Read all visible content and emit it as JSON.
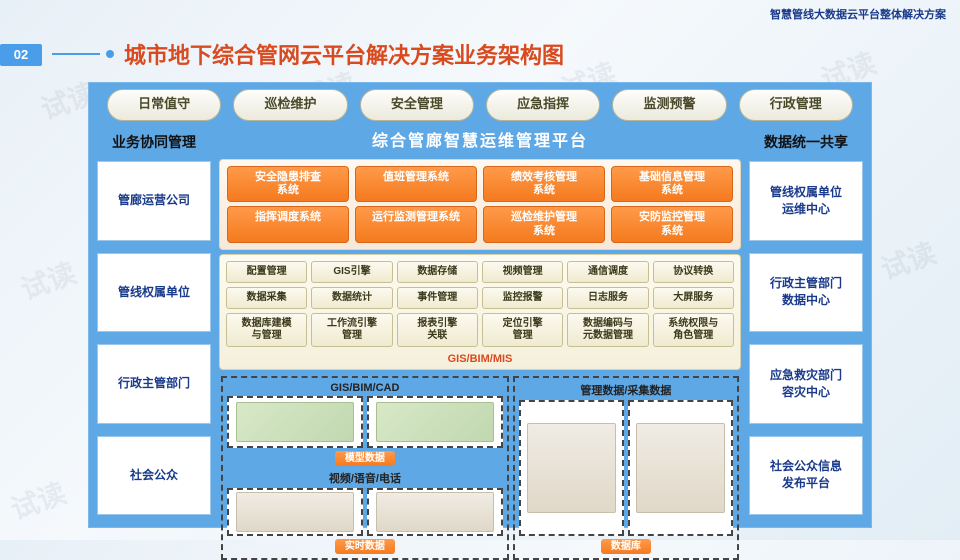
{
  "header_small": "智慧管线大数据云平台整体解决方案",
  "badge": "02",
  "title": "城市地下综合管网云平台解决方案业务架构图",
  "watermark": "试读",
  "colors": {
    "blue_bg": "#5fa8e6",
    "orange_btn": "#f57a1e",
    "title_red": "#d94a1e",
    "navy_text": "#1a3a8a",
    "tab_bg": "#eceadd",
    "cream_bg": "#f5f0dc"
  },
  "top_tabs": [
    "日常值守",
    "巡检维护",
    "安全管理",
    "应急指挥",
    "监测预警",
    "行政管理"
  ],
  "left": {
    "header": "业务协同管理",
    "boxes": [
      "管廊运营公司",
      "管线权属单位",
      "行政主管部门",
      "社会公众"
    ]
  },
  "right": {
    "header": "数据统一共享",
    "boxes": [
      "管线权属单位\n运维中心",
      "行政主管部门\n数据中心",
      "应急救灾部门\n容灾中心",
      "社会公众信息\n发布平台"
    ]
  },
  "center_header": "综合管廊智慧运维管理平台",
  "orange_rows": [
    [
      "安全隐患排查\n系统",
      "值班管理系统",
      "绩效考核管理\n系统",
      "基础信息管理\n系统"
    ],
    [
      "指挥调度系统",
      "运行监测管理系统",
      "巡检维护管理\n系统",
      "安防监控管理\n系统"
    ]
  ],
  "cream_rows": [
    [
      "配置管理",
      "GIS引擎",
      "数据存储",
      "视频管理",
      "通信调度",
      "协议转换"
    ],
    [
      "数据采集",
      "数据统计",
      "事件管理",
      "监控报警",
      "日志服务",
      "大屏服务"
    ],
    [
      "数据库建模\n与管理",
      "工作流引擎\n管理",
      "报表引擎\n关联",
      "定位引擎\n管理",
      "数据编码与\n元数据管理",
      "系统权限与\n角色管理"
    ]
  ],
  "gis_label": "GIS/BIM/MIS",
  "dashed_left": {
    "top_title": "GIS/BIM/CAD",
    "top_label": "模型数据",
    "bottom_title": "视频/语音/电话",
    "bottom_label": "实时数据"
  },
  "dashed_right": {
    "title": "管理数据/采集数据",
    "label": "数据库"
  }
}
